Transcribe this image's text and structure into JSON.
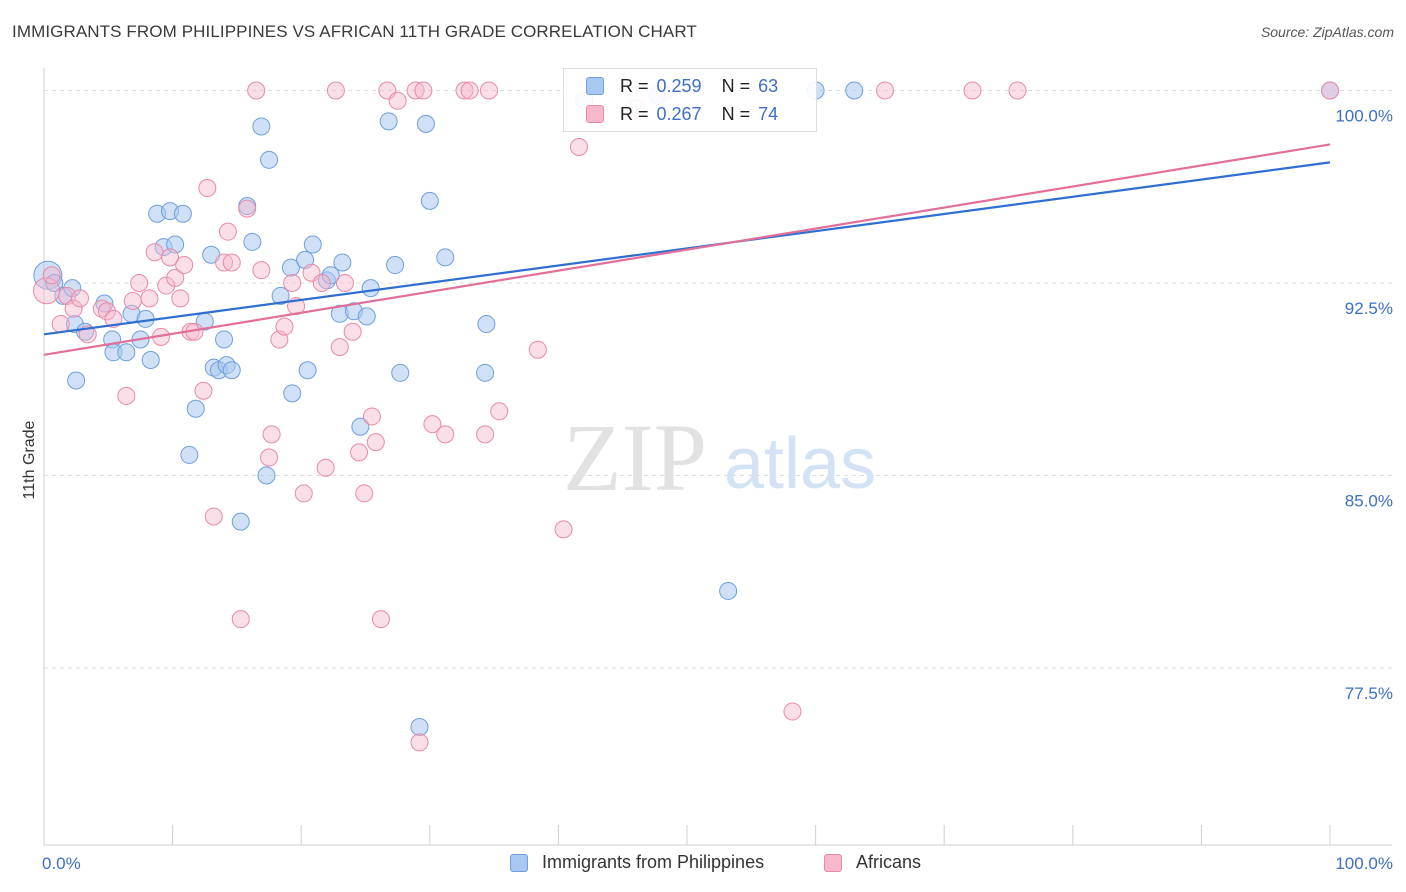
{
  "title": "IMMIGRANTS FROM PHILIPPINES VS AFRICAN 11TH GRADE CORRELATION CHART",
  "source": "Source: ZipAtlas.com",
  "watermark": {
    "zip": "ZIP",
    "atlas": "atlas"
  },
  "colors": {
    "blue_fill": "#a9c8f0",
    "blue_stroke": "#6f9fdc",
    "blue_line": "#2f6fd0",
    "pink_fill": "#f7b8cc",
    "pink_stroke": "#e88aa8",
    "pink_line": "#e0709a",
    "tick_text": "#3f6fc5",
    "grid": "#dddddd"
  },
  "legend": {
    "rows": [
      {
        "r_label": "R =",
        "r_value": "0.259",
        "n_label": "N =",
        "n_value": "63"
      },
      {
        "r_label": "R =",
        "r_value": "0.267",
        "n_label": "N =",
        "n_value": "74"
      }
    ]
  },
  "bottom_legend": {
    "blue": "Immigrants from Philippines",
    "pink": "Africans"
  },
  "chart_data": {
    "type": "scatter",
    "title": "IMMIGRANTS FROM PHILIPPINES VS AFRICAN 11TH GRADE CORRELATION CHART",
    "xlabel": "",
    "ylabel": "11th Grade",
    "xlim": [
      0,
      100
    ],
    "ylim": [
      70.6,
      100.8
    ],
    "x_tick_labels": [
      "0.0%",
      "100.0%"
    ],
    "y_ticks": [
      77.5,
      85.0,
      92.5,
      100.0
    ],
    "y_tick_labels": [
      "77.5%",
      "85.0%",
      "92.5%",
      "100.0%"
    ],
    "grid": true,
    "legend_position": "top-center",
    "series": [
      {
        "name": "Immigrants from Philippines",
        "color": "#a9c8f0",
        "trend": {
          "x": [
            0,
            100
          ],
          "y": [
            90.5,
            97.2
          ]
        },
        "points": [
          [
            0.3,
            92.8
          ],
          [
            0.8,
            92.5
          ],
          [
            1.5,
            92.0
          ],
          [
            2.2,
            92.3
          ],
          [
            2.4,
            90.9
          ],
          [
            2.5,
            88.7
          ],
          [
            3.2,
            90.6
          ],
          [
            4.7,
            91.7
          ],
          [
            5.3,
            90.3
          ],
          [
            5.4,
            89.8
          ],
          [
            6.4,
            89.8
          ],
          [
            6.8,
            91.3
          ],
          [
            7.5,
            90.3
          ],
          [
            7.9,
            91.1
          ],
          [
            8.3,
            89.5
          ],
          [
            8.8,
            95.2
          ],
          [
            9.3,
            93.9
          ],
          [
            9.8,
            95.3
          ],
          [
            10.2,
            94.0
          ],
          [
            10.8,
            95.2
          ],
          [
            11.3,
            85.8
          ],
          [
            11.8,
            87.6
          ],
          [
            12.5,
            91.0
          ],
          [
            13.0,
            93.6
          ],
          [
            13.2,
            89.2
          ],
          [
            13.6,
            89.1
          ],
          [
            14.0,
            90.3
          ],
          [
            14.2,
            89.3
          ],
          [
            14.6,
            89.1
          ],
          [
            15.3,
            83.2
          ],
          [
            15.8,
            95.5
          ],
          [
            16.2,
            94.1
          ],
          [
            16.9,
            98.6
          ],
          [
            17.3,
            85.0
          ],
          [
            17.5,
            97.3
          ],
          [
            18.4,
            92.0
          ],
          [
            19.2,
            93.1
          ],
          [
            19.3,
            88.2
          ],
          [
            20.3,
            93.4
          ],
          [
            20.5,
            89.1
          ],
          [
            20.9,
            94.0
          ],
          [
            22.0,
            92.6
          ],
          [
            22.3,
            92.8
          ],
          [
            23.0,
            91.3
          ],
          [
            23.2,
            93.3
          ],
          [
            24.1,
            91.4
          ],
          [
            24.6,
            86.9
          ],
          [
            25.1,
            91.2
          ],
          [
            25.4,
            92.3
          ],
          [
            26.8,
            98.8
          ],
          [
            27.3,
            93.2
          ],
          [
            27.7,
            89.0
          ],
          [
            29.2,
            75.2
          ],
          [
            29.7,
            98.7
          ],
          [
            30.0,
            95.7
          ],
          [
            31.2,
            93.5
          ],
          [
            34.3,
            89.0
          ],
          [
            34.4,
            90.9
          ],
          [
            42.0,
            99.6
          ],
          [
            47.7,
            99.8
          ],
          [
            53.2,
            80.5
          ],
          [
            60.0,
            100.0
          ],
          [
            63.0,
            100.0
          ],
          [
            100.0,
            100.0
          ]
        ]
      },
      {
        "name": "Africans",
        "color": "#f7b8cc",
        "trend": {
          "x": [
            0,
            100
          ],
          "y": [
            89.7,
            97.9
          ]
        },
        "points": [
          [
            0.2,
            92.2
          ],
          [
            0.6,
            92.8
          ],
          [
            1.3,
            90.9
          ],
          [
            1.8,
            92.0
          ],
          [
            2.3,
            91.5
          ],
          [
            2.8,
            91.9
          ],
          [
            3.4,
            90.5
          ],
          [
            4.5,
            91.5
          ],
          [
            4.9,
            91.4
          ],
          [
            5.4,
            91.1
          ],
          [
            6.4,
            88.1
          ],
          [
            6.9,
            91.8
          ],
          [
            7.4,
            92.5
          ],
          [
            8.2,
            91.9
          ],
          [
            8.6,
            93.7
          ],
          [
            9.1,
            90.4
          ],
          [
            9.5,
            92.4
          ],
          [
            9.8,
            93.5
          ],
          [
            10.2,
            92.7
          ],
          [
            10.6,
            91.9
          ],
          [
            10.9,
            93.2
          ],
          [
            11.4,
            90.6
          ],
          [
            11.7,
            90.6
          ],
          [
            12.4,
            88.3
          ],
          [
            12.7,
            96.2
          ],
          [
            13.2,
            83.4
          ],
          [
            14.0,
            93.3
          ],
          [
            14.3,
            94.5
          ],
          [
            14.6,
            93.3
          ],
          [
            15.3,
            79.4
          ],
          [
            15.8,
            95.4
          ],
          [
            16.5,
            100.0
          ],
          [
            16.9,
            93.0
          ],
          [
            17.5,
            85.7
          ],
          [
            17.7,
            86.6
          ],
          [
            18.3,
            90.3
          ],
          [
            18.7,
            90.8
          ],
          [
            19.3,
            92.5
          ],
          [
            19.6,
            91.6
          ],
          [
            20.2,
            84.3
          ],
          [
            20.8,
            92.9
          ],
          [
            21.6,
            92.5
          ],
          [
            21.9,
            85.3
          ],
          [
            22.7,
            100.0
          ],
          [
            23.0,
            90.0
          ],
          [
            23.4,
            92.5
          ],
          [
            24.0,
            90.6
          ],
          [
            24.5,
            85.9
          ],
          [
            24.9,
            84.3
          ],
          [
            25.5,
            87.3
          ],
          [
            25.8,
            86.3
          ],
          [
            26.2,
            79.4
          ],
          [
            26.7,
            100.0
          ],
          [
            27.5,
            99.6
          ],
          [
            28.9,
            100.0
          ],
          [
            29.2,
            74.6
          ],
          [
            29.5,
            100.0
          ],
          [
            30.2,
            87.0
          ],
          [
            31.2,
            86.6
          ],
          [
            32.7,
            100.0
          ],
          [
            33.1,
            100.0
          ],
          [
            34.3,
            86.6
          ],
          [
            34.6,
            100.0
          ],
          [
            35.4,
            87.5
          ],
          [
            38.4,
            89.9
          ],
          [
            40.4,
            82.9
          ],
          [
            41.6,
            97.8
          ],
          [
            46.0,
            99.3
          ],
          [
            48.3,
            100.0
          ],
          [
            58.2,
            75.8
          ],
          [
            65.4,
            100.0
          ],
          [
            72.2,
            100.0
          ],
          [
            75.7,
            100.0
          ],
          [
            100.0,
            100.0
          ]
        ]
      }
    ]
  }
}
